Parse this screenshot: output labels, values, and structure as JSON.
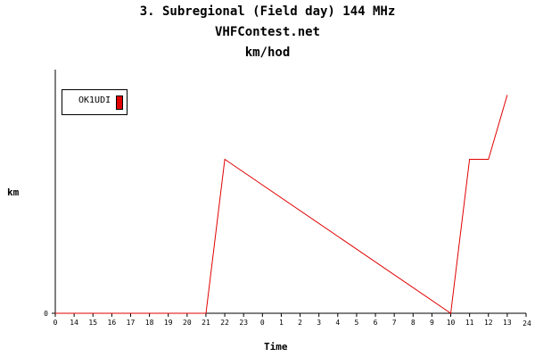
{
  "chart_data": {
    "type": "line",
    "title": "3. Subregional (Field day) 144 MHz",
    "subtitle": "VHFContest.net",
    "unit_title": "km/hod",
    "xlabel": "Time",
    "ylabel": "km",
    "x_ticks": [
      "0",
      "14",
      "15",
      "16",
      "17",
      "18",
      "19",
      "20",
      "21",
      "22",
      "23",
      "0",
      "1",
      "2",
      "3",
      "4",
      "5",
      "6",
      "7",
      "8",
      "9",
      "10",
      "11",
      "12",
      "13",
      "24"
    ],
    "y_ticks": [
      "0"
    ],
    "legend": {
      "placement": "top-left"
    },
    "series": [
      {
        "name": "OK1UDI",
        "color": "#e00000",
        "x": [
          0,
          8,
          9,
          21,
          22,
          23,
          24
        ],
        "values": [
          0,
          0,
          79,
          0,
          79,
          79,
          112
        ]
      }
    ],
    "ylim": [
      0,
      125
    ],
    "grid": false
  }
}
